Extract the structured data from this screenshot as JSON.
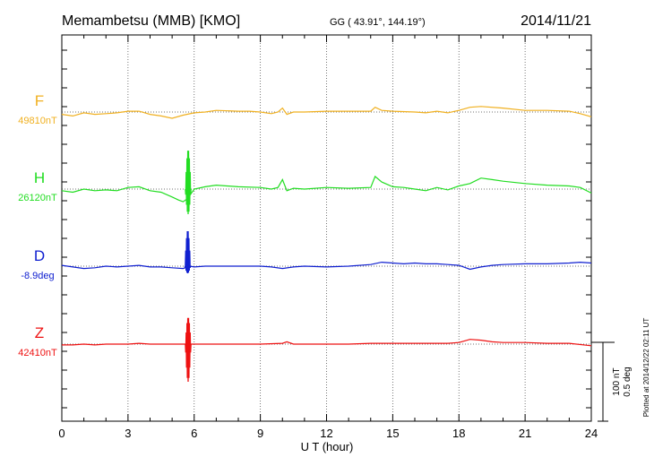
{
  "header": {
    "station": "Memambetsu (MMB)  [KMO]",
    "coords": "GG ( 43.91°, 144.19°)",
    "date": "2014/11/21"
  },
  "side_note": "Plotted at 2014/12/22 02:11  UT",
  "scale": {
    "nT": "100 nT",
    "deg": "0.5 deg"
  },
  "chart_data": {
    "type": "line",
    "xlabel": "U T (hour)",
    "xlim": [
      0,
      24
    ],
    "xticks": [
      0,
      3,
      6,
      9,
      12,
      15,
      18,
      21,
      24
    ],
    "xtick_labels": [
      "0",
      "3",
      "6",
      "9",
      "12",
      "15",
      "18",
      "21",
      "24"
    ],
    "grid": true,
    "series": [
      {
        "name": "F",
        "baseline_label": "49810nT",
        "color": "#f0b020",
        "unit": "nT",
        "points": [
          [
            0,
            -3
          ],
          [
            0.5,
            -5
          ],
          [
            1,
            -1
          ],
          [
            1.5,
            -3
          ],
          [
            2,
            -2
          ],
          [
            2.5,
            -1
          ],
          [
            3,
            1
          ],
          [
            3.5,
            1
          ],
          [
            4,
            -3
          ],
          [
            4.5,
            -5
          ],
          [
            5,
            -8
          ],
          [
            5.5,
            -4
          ],
          [
            6,
            -1
          ],
          [
            6.5,
            0
          ],
          [
            7,
            2
          ],
          [
            8,
            1
          ],
          [
            8.5,
            1
          ],
          [
            9,
            0
          ],
          [
            9.5,
            -2
          ],
          [
            9.8,
            0
          ],
          [
            10,
            5
          ],
          [
            10.2,
            -3
          ],
          [
            10.5,
            0
          ],
          [
            11,
            0
          ],
          [
            12,
            1
          ],
          [
            13,
            1
          ],
          [
            14,
            1
          ],
          [
            14.2,
            6
          ],
          [
            14.5,
            2
          ],
          [
            15,
            1
          ],
          [
            16,
            0
          ],
          [
            16.5,
            -1
          ],
          [
            17,
            1
          ],
          [
            17.5,
            -1
          ],
          [
            18,
            2
          ],
          [
            18.5,
            6
          ],
          [
            19,
            7
          ],
          [
            20,
            5
          ],
          [
            21,
            2
          ],
          [
            22,
            2
          ],
          [
            23,
            1
          ],
          [
            23.5,
            -2
          ],
          [
            24,
            -6
          ]
        ]
      },
      {
        "name": "H",
        "baseline_label": "26120nT",
        "color": "#22dd22",
        "unit": "nT",
        "points": [
          [
            0,
            -2
          ],
          [
            0.5,
            -4
          ],
          [
            1,
            0
          ],
          [
            1.5,
            -2
          ],
          [
            2,
            -1
          ],
          [
            2.5,
            -2
          ],
          [
            3,
            2
          ],
          [
            3.5,
            3
          ],
          [
            4,
            -2
          ],
          [
            4.5,
            -4
          ],
          [
            5,
            -10
          ],
          [
            5.3,
            -14
          ],
          [
            5.5,
            -16
          ],
          [
            5.7,
            -12
          ],
          [
            6,
            0
          ],
          [
            6.5,
            3
          ],
          [
            7,
            5
          ],
          [
            8,
            3
          ],
          [
            9,
            2
          ],
          [
            9.5,
            0
          ],
          [
            9.8,
            2
          ],
          [
            10,
            12
          ],
          [
            10.2,
            -2
          ],
          [
            10.5,
            1
          ],
          [
            11,
            0
          ],
          [
            12,
            2
          ],
          [
            13,
            1
          ],
          [
            14,
            2
          ],
          [
            14.2,
            16
          ],
          [
            14.5,
            9
          ],
          [
            15,
            3
          ],
          [
            15.5,
            2
          ],
          [
            16,
            0
          ],
          [
            16.5,
            -2
          ],
          [
            17,
            2
          ],
          [
            17.5,
            -1
          ],
          [
            18,
            4
          ],
          [
            18.5,
            7
          ],
          [
            19,
            14
          ],
          [
            19.5,
            12
          ],
          [
            20,
            10
          ],
          [
            21,
            7
          ],
          [
            22,
            5
          ],
          [
            23,
            4
          ],
          [
            23.5,
            2
          ],
          [
            24,
            -5
          ]
        ]
      },
      {
        "name": "D",
        "baseline_label": "-8.9deg",
        "color": "#1020d0",
        "unit": "deg",
        "points": [
          [
            0,
            1
          ],
          [
            0.5,
            -1
          ],
          [
            1,
            -3
          ],
          [
            1.5,
            -2
          ],
          [
            2,
            0
          ],
          [
            2.5,
            -1
          ],
          [
            3,
            0
          ],
          [
            3.5,
            1
          ],
          [
            4,
            -1
          ],
          [
            4.5,
            -1
          ],
          [
            5,
            -2
          ],
          [
            5.5,
            -3
          ],
          [
            5.8,
            0
          ],
          [
            6,
            -1
          ],
          [
            6.5,
            0
          ],
          [
            7,
            0
          ],
          [
            8,
            0
          ],
          [
            9,
            0
          ],
          [
            9.5,
            -1
          ],
          [
            10,
            -3
          ],
          [
            10.5,
            -1
          ],
          [
            11,
            0
          ],
          [
            12,
            -1
          ],
          [
            13,
            0
          ],
          [
            14,
            2
          ],
          [
            14.5,
            5
          ],
          [
            15,
            4
          ],
          [
            15.5,
            3
          ],
          [
            16,
            4
          ],
          [
            16.5,
            3
          ],
          [
            17,
            3
          ],
          [
            17.5,
            2
          ],
          [
            18,
            1
          ],
          [
            18.5,
            -4
          ],
          [
            19,
            -1
          ],
          [
            19.5,
            1
          ],
          [
            20,
            2
          ],
          [
            21,
            3
          ],
          [
            22,
            3
          ],
          [
            23,
            4
          ],
          [
            23.5,
            5
          ],
          [
            24,
            4
          ]
        ]
      },
      {
        "name": "Z",
        "baseline_label": "42410nT",
        "color": "#ee1111",
        "unit": "nT",
        "points": [
          [
            0,
            -1
          ],
          [
            0.5,
            -1
          ],
          [
            1,
            0
          ],
          [
            1.5,
            -1
          ],
          [
            2,
            0
          ],
          [
            3,
            0
          ],
          [
            3.5,
            1
          ],
          [
            4,
            0
          ],
          [
            5,
            0
          ],
          [
            5.5,
            0
          ],
          [
            6,
            0
          ],
          [
            7,
            0
          ],
          [
            8,
            0
          ],
          [
            9,
            0
          ],
          [
            10,
            1
          ],
          [
            10.2,
            3
          ],
          [
            10.5,
            0
          ],
          [
            11,
            0
          ],
          [
            12,
            0
          ],
          [
            13,
            0
          ],
          [
            14,
            1
          ],
          [
            15,
            1
          ],
          [
            16,
            1
          ],
          [
            17,
            1
          ],
          [
            17.5,
            1
          ],
          [
            18,
            2
          ],
          [
            18.5,
            6
          ],
          [
            19,
            5
          ],
          [
            19.5,
            3
          ],
          [
            20,
            2
          ],
          [
            21,
            2
          ],
          [
            22,
            1
          ],
          [
            23,
            1
          ],
          [
            24,
            -2
          ]
        ]
      }
    ],
    "burst": [
      {
        "series": "H",
        "x": 5.72,
        "down": 28,
        "up": 44
      },
      {
        "series": "D",
        "x": 5.7,
        "down": 8,
        "up": 40
      },
      {
        "series": "Z",
        "x": 5.72,
        "down": 42,
        "up": 30
      }
    ]
  }
}
